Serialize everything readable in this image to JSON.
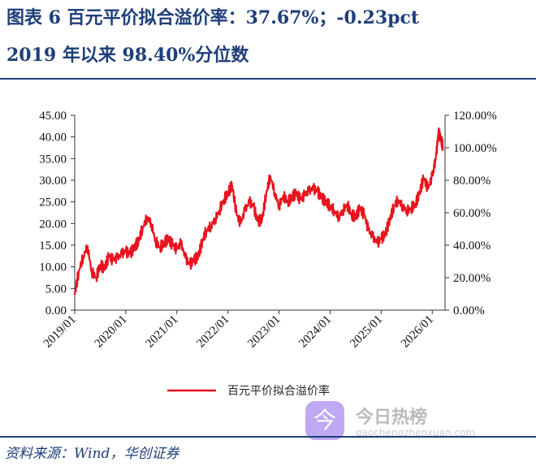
{
  "header": {
    "title_line1": "图表 6   百元平价拟合溢价率：37.67%；-0.23pct",
    "title_line2": "2019 年以来 98.40%分位数"
  },
  "source": "资料来源：Wind，华创证券",
  "watermark": {
    "badge": "今",
    "name": "今日热榜",
    "url": "gaochengzhenxuan.com"
  },
  "chart_data": {
    "type": "line",
    "title": "百元平价拟合溢价率",
    "x_tick_labels": [
      "2019/01",
      "2020/01",
      "2021/01",
      "2022/01",
      "2023/01",
      "2024/01",
      "2025/01",
      "2026/01"
    ],
    "left_axis": {
      "ylim": [
        0,
        45
      ],
      "ticks": [
        0,
        5,
        10,
        15,
        20,
        25,
        30,
        35,
        40,
        45
      ],
      "tick_labels": [
        "0.00",
        "5.00",
        "10.00",
        "15.00",
        "20.00",
        "25.00",
        "30.00",
        "35.00",
        "40.00",
        "45.00"
      ]
    },
    "right_axis": {
      "ylim": [
        0,
        120
      ],
      "ticks": [
        0,
        20,
        40,
        60,
        80,
        100,
        120
      ],
      "tick_labels": [
        "0.00%",
        "20.00%",
        "40.00%",
        "60.00%",
        "80.00%",
        "100.00%",
        "120.00%"
      ]
    },
    "legend": "百元平价拟合溢价率",
    "legend_position": "bottom",
    "color": "#e8141e",
    "series": [
      {
        "name": "百元平价拟合溢价率",
        "x": [
          2019.0,
          2019.08,
          2019.17,
          2019.25,
          2019.33,
          2019.42,
          2019.5,
          2019.58,
          2019.67,
          2019.75,
          2019.83,
          2019.92,
          2020.0,
          2020.08,
          2020.17,
          2020.25,
          2020.33,
          2020.42,
          2020.5,
          2020.58,
          2020.67,
          2020.75,
          2020.83,
          2020.92,
          2021.0,
          2021.08,
          2021.17,
          2021.25,
          2021.33,
          2021.42,
          2021.5,
          2021.58,
          2021.67,
          2021.75,
          2021.83,
          2021.92,
          2022.0,
          2022.08,
          2022.17,
          2022.25,
          2022.33,
          2022.42,
          2022.5,
          2022.58,
          2022.67,
          2022.75,
          2022.83,
          2022.92,
          2023.0,
          2023.08,
          2023.17,
          2023.25,
          2023.33,
          2023.42,
          2023.5,
          2023.58,
          2023.67,
          2023.75,
          2023.83,
          2023.92,
          2024.0,
          2024.08,
          2024.17,
          2024.25,
          2024.33,
          2024.42,
          2024.5,
          2024.58,
          2024.67,
          2024.75,
          2024.83,
          2024.92,
          2025.0,
          2025.08,
          2025.17,
          2025.25,
          2025.33,
          2025.42,
          2025.5,
          2025.58,
          2025.67,
          2025.75,
          2025.83,
          2025.92,
          2026.0,
          2026.04,
          2026.08,
          2026.12,
          2026.17,
          2026.21
        ],
        "values": [
          3.5,
          9.0,
          12.5,
          14.8,
          9.0,
          7.5,
          10.5,
          9.5,
          12.5,
          11.5,
          12.0,
          13.0,
          13.5,
          13.0,
          14.5,
          16.0,
          19.0,
          21.5,
          20.0,
          16.0,
          14.5,
          15.5,
          16.5,
          15.0,
          14.0,
          15.5,
          12.0,
          10.5,
          11.5,
          12.5,
          16.0,
          18.5,
          19.5,
          21.0,
          23.0,
          25.5,
          27.0,
          29.0,
          22.0,
          20.0,
          23.0,
          25.0,
          24.0,
          20.5,
          21.0,
          27.0,
          31.0,
          27.0,
          24.0,
          26.5,
          25.0,
          26.0,
          27.0,
          25.5,
          26.5,
          27.5,
          28.0,
          27.5,
          26.0,
          25.0,
          24.0,
          23.0,
          21.5,
          23.0,
          24.5,
          22.0,
          21.5,
          23.5,
          22.0,
          18.5,
          17.0,
          15.5,
          16.5,
          17.5,
          21.0,
          24.0,
          25.5,
          24.0,
          23.0,
          23.5,
          24.5,
          27.0,
          30.5,
          28.0,
          31.0,
          33.0,
          36.0,
          41.0,
          39.5,
          37.67
        ]
      }
    ]
  }
}
